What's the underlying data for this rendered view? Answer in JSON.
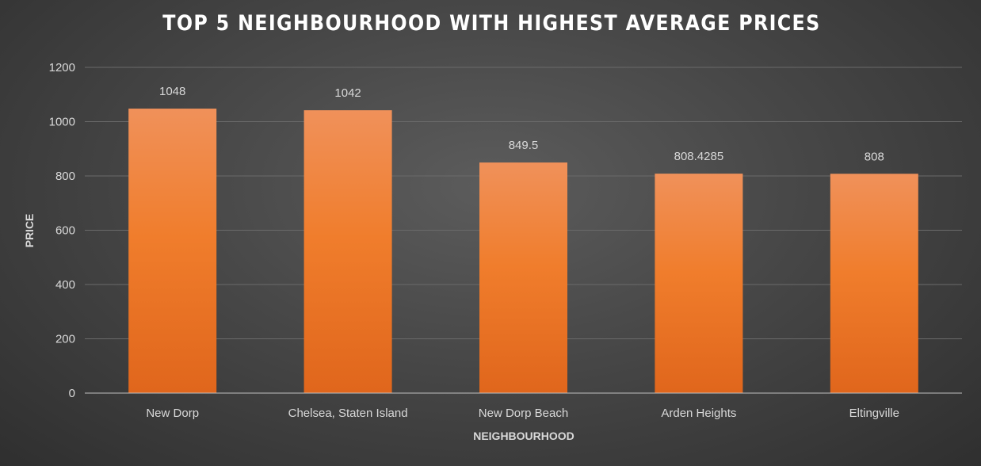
{
  "chart_data": {
    "type": "bar",
    "title": "TOP 5 NEIGHBOURHOOD WITH HIGHEST AVERAGE PRICES",
    "xlabel": "NEIGHBOURHOOD",
    "ylabel": "PRICE",
    "categories": [
      "New Dorp",
      "Chelsea, Staten Island",
      "New Dorp Beach",
      "Arden Heights",
      "Eltingville"
    ],
    "values": [
      1048,
      1042,
      849.5,
      808.4285,
      808
    ],
    "data_labels": [
      "1048",
      "1042",
      "849.5",
      "808.4285",
      "808"
    ],
    "yticks": [
      0,
      200,
      400,
      600,
      800,
      1000,
      1200
    ],
    "ylim": [
      0,
      1200
    ],
    "grid": true,
    "legend": "none",
    "colors": {
      "bar_top": "#f0915a",
      "bar_mid": "#f07d2c",
      "bar_bottom": "#e0661c",
      "gridline": "#6a6a6a",
      "axis_line": "#bfbfbf",
      "text": "#d9d9d9",
      "title": "#ffffff"
    }
  }
}
